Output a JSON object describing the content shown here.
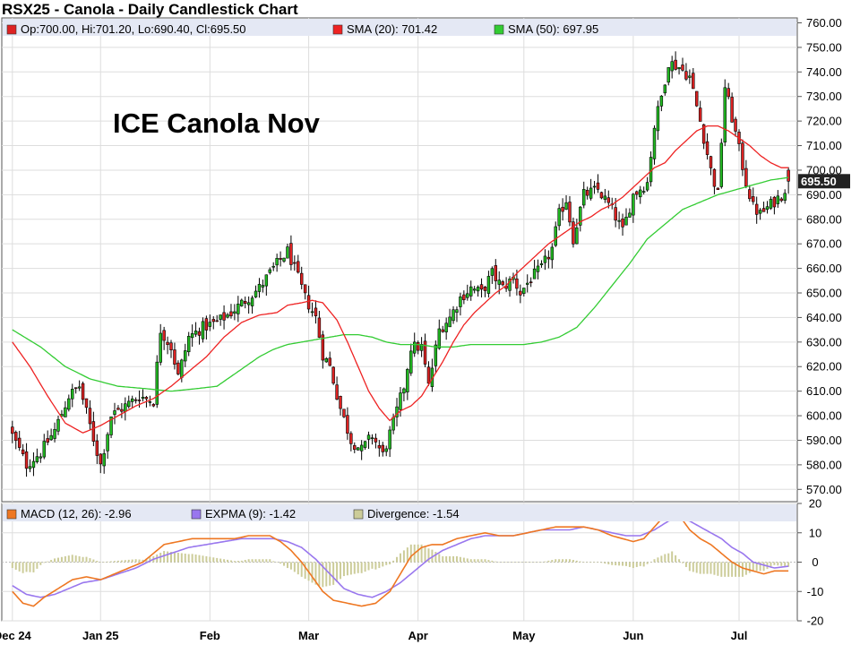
{
  "chart_data": {
    "type": "candlestick",
    "title": "RSX25 - Canola - Daily Candlestick Chart",
    "annotation": "ICE Canola Nov",
    "ohlc_legend": {
      "open": "700.00",
      "high": "701.20",
      "low": "690.40",
      "close": "695.50",
      "text": "Op:700.00, Hi:701.20, Lo:690.40, Cl:695.50"
    },
    "sma20_legend": "SMA (20): 701.42",
    "sma50_legend": "SMA (50): 697.95",
    "last_price_label": "695.50",
    "price_axis": {
      "min": 565,
      "max": 762,
      "ticks": [
        "760.00",
        "750.00",
        "740.00",
        "730.00",
        "720.00",
        "710.00",
        "700.00",
        "690.00",
        "680.00",
        "670.00",
        "660.00",
        "650.00",
        "640.00",
        "630.00",
        "620.00",
        "610.00",
        "600.00",
        "590.00",
        "580.00",
        "570.00"
      ]
    },
    "macd_axis": {
      "min": -20,
      "max": 20,
      "ticks": [
        "20",
        "10",
        "0",
        "-10",
        "-20"
      ]
    },
    "macd_legend": "MACD (12, 26): -2.96",
    "expma_legend": "EXPMA (9): -1.42",
    "divergence_legend": "Divergence: -1.54",
    "x_labels": [
      "Dec 24",
      "Jan 25",
      "Feb",
      "Mar",
      "Apr",
      "May",
      "Jun",
      "Jul"
    ],
    "x_label_days": [
      0,
      25,
      56,
      84,
      115,
      145,
      176,
      206
    ],
    "colors": {
      "up": "#22bb22",
      "down": "#dd2222",
      "sma20": "#ee2222",
      "sma50": "#33cc33",
      "macd": "#ee7722",
      "expma": "#9977ee",
      "divergence": "#cccc99",
      "legend_bg": "#e4e8f4",
      "grid": "#dddddd"
    },
    "close_anchors": [
      [
        0,
        592
      ],
      [
        4,
        580
      ],
      [
        8,
        585
      ],
      [
        12,
        594
      ],
      [
        16,
        608
      ],
      [
        19,
        612
      ],
      [
        22,
        596
      ],
      [
        25,
        580
      ],
      [
        28,
        600
      ],
      [
        32,
        604
      ],
      [
        36,
        608
      ],
      [
        40,
        606
      ],
      [
        42,
        635
      ],
      [
        45,
        628
      ],
      [
        47,
        616
      ],
      [
        50,
        632
      ],
      [
        54,
        636
      ],
      [
        58,
        638
      ],
      [
        62,
        642
      ],
      [
        66,
        647
      ],
      [
        70,
        652
      ],
      [
        74,
        660
      ],
      [
        78,
        667
      ],
      [
        80,
        660
      ],
      [
        83,
        648
      ],
      [
        86,
        640
      ],
      [
        88,
        625
      ],
      [
        90,
        620
      ],
      [
        93,
        603
      ],
      [
        96,
        590
      ],
      [
        99,
        586
      ],
      [
        102,
        592
      ],
      [
        105,
        584
      ],
      [
        108,
        597
      ],
      [
        111,
        612
      ],
      [
        113,
        628
      ],
      [
        116,
        628
      ],
      [
        118,
        612
      ],
      [
        121,
        635
      ],
      [
        124,
        640
      ],
      [
        127,
        648
      ],
      [
        130,
        652
      ],
      [
        133,
        650
      ],
      [
        136,
        658
      ],
      [
        139,
        652
      ],
      [
        142,
        656
      ],
      [
        144,
        650
      ],
      [
        147,
        656
      ],
      [
        150,
        660
      ],
      [
        153,
        668
      ],
      [
        155,
        682
      ],
      [
        157,
        688
      ],
      [
        159,
        672
      ],
      [
        162,
        690
      ],
      [
        166,
        692
      ],
      [
        170,
        684
      ],
      [
        173,
        675
      ],
      [
        176,
        690
      ],
      [
        180,
        695
      ],
      [
        182,
        718
      ],
      [
        184,
        730
      ],
      [
        186,
        744
      ],
      [
        189,
        742
      ],
      [
        192,
        738
      ],
      [
        195,
        720
      ],
      [
        198,
        700
      ],
      [
        200,
        690
      ],
      [
        202,
        734
      ],
      [
        205,
        715
      ],
      [
        208,
        695
      ],
      [
        210,
        685
      ],
      [
        212,
        682
      ],
      [
        215,
        686
      ],
      [
        218,
        690
      ],
      [
        220,
        695
      ]
    ],
    "sma20_anchors": [
      [
        0,
        630
      ],
      [
        5,
        620
      ],
      [
        10,
        608
      ],
      [
        15,
        597
      ],
      [
        20,
        593
      ],
      [
        25,
        596
      ],
      [
        30,
        600
      ],
      [
        35,
        604
      ],
      [
        40,
        607
      ],
      [
        45,
        612
      ],
      [
        50,
        618
      ],
      [
        55,
        624
      ],
      [
        60,
        632
      ],
      [
        65,
        638
      ],
      [
        70,
        641
      ],
      [
        75,
        642
      ],
      [
        78,
        645
      ],
      [
        82,
        646
      ],
      [
        85,
        647
      ],
      [
        88,
        646
      ],
      [
        92,
        639
      ],
      [
        95,
        630
      ],
      [
        98,
        620
      ],
      [
        101,
        610
      ],
      [
        104,
        603
      ],
      [
        107,
        598
      ],
      [
        110,
        602
      ],
      [
        113,
        604
      ],
      [
        116,
        608
      ],
      [
        119,
        615
      ],
      [
        122,
        622
      ],
      [
        125,
        630
      ],
      [
        128,
        637
      ],
      [
        131,
        642
      ],
      [
        134,
        646
      ],
      [
        137,
        650
      ],
      [
        140,
        653
      ],
      [
        143,
        658
      ],
      [
        146,
        662
      ],
      [
        149,
        666
      ],
      [
        152,
        670
      ],
      [
        155,
        673
      ],
      [
        158,
        676
      ],
      [
        161,
        679
      ],
      [
        164,
        681
      ],
      [
        167,
        684
      ],
      [
        170,
        686
      ],
      [
        173,
        689
      ],
      [
        176,
        693
      ],
      [
        179,
        697
      ],
      [
        182,
        701
      ],
      [
        185,
        703
      ],
      [
        188,
        708
      ],
      [
        191,
        712
      ],
      [
        194,
        716
      ],
      [
        197,
        718
      ],
      [
        200,
        718
      ],
      [
        203,
        716
      ],
      [
        206,
        713
      ],
      [
        209,
        710
      ],
      [
        212,
        706
      ],
      [
        215,
        703
      ],
      [
        218,
        701
      ],
      [
        220,
        701
      ]
    ],
    "sma50_anchors": [
      [
        0,
        635
      ],
      [
        8,
        628
      ],
      [
        15,
        620
      ],
      [
        22,
        615
      ],
      [
        30,
        612
      ],
      [
        38,
        611
      ],
      [
        45,
        610
      ],
      [
        52,
        611
      ],
      [
        58,
        612
      ],
      [
        62,
        616
      ],
      [
        66,
        620
      ],
      [
        70,
        624
      ],
      [
        74,
        627
      ],
      [
        78,
        629
      ],
      [
        82,
        630
      ],
      [
        86,
        631
      ],
      [
        90,
        632
      ],
      [
        94,
        633
      ],
      [
        98,
        633
      ],
      [
        102,
        632
      ],
      [
        106,
        630
      ],
      [
        110,
        629
      ],
      [
        115,
        629
      ],
      [
        120,
        628
      ],
      [
        125,
        628
      ],
      [
        130,
        629
      ],
      [
        135,
        629
      ],
      [
        140,
        629
      ],
      [
        145,
        629
      ],
      [
        150,
        630
      ],
      [
        155,
        632
      ],
      [
        160,
        636
      ],
      [
        165,
        644
      ],
      [
        170,
        653
      ],
      [
        175,
        662
      ],
      [
        180,
        672
      ],
      [
        185,
        678
      ],
      [
        190,
        684
      ],
      [
        195,
        687
      ],
      [
        200,
        690
      ],
      [
        205,
        692
      ],
      [
        210,
        694
      ],
      [
        215,
        696
      ],
      [
        220,
        697
      ]
    ],
    "macd_anchors": [
      [
        0,
        -10
      ],
      [
        3,
        -14
      ],
      [
        6,
        -15
      ],
      [
        9,
        -12
      ],
      [
        13,
        -9
      ],
      [
        17,
        -6
      ],
      [
        21,
        -5
      ],
      [
        25,
        -6
      ],
      [
        29,
        -4
      ],
      [
        33,
        -2
      ],
      [
        37,
        0
      ],
      [
        40,
        3
      ],
      [
        43,
        6
      ],
      [
        47,
        7
      ],
      [
        51,
        8
      ],
      [
        55,
        8
      ],
      [
        59,
        8
      ],
      [
        63,
        8
      ],
      [
        67,
        9
      ],
      [
        70,
        9
      ],
      [
        73,
        9
      ],
      [
        76,
        7
      ],
      [
        79,
        4
      ],
      [
        82,
        0
      ],
      [
        85,
        -5
      ],
      [
        88,
        -10
      ],
      [
        91,
        -13
      ],
      [
        95,
        -14
      ],
      [
        99,
        -15
      ],
      [
        103,
        -14
      ],
      [
        107,
        -10
      ],
      [
        110,
        -4
      ],
      [
        113,
        2
      ],
      [
        116,
        5
      ],
      [
        119,
        6
      ],
      [
        122,
        6
      ],
      [
        126,
        8
      ],
      [
        130,
        9
      ],
      [
        134,
        10
      ],
      [
        138,
        9
      ],
      [
        142,
        9
      ],
      [
        146,
        10
      ],
      [
        150,
        11
      ],
      [
        154,
        12
      ],
      [
        158,
        12
      ],
      [
        162,
        12
      ],
      [
        166,
        11
      ],
      [
        170,
        9
      ],
      [
        173,
        8
      ],
      [
        176,
        7
      ],
      [
        179,
        8
      ],
      [
        182,
        12
      ],
      [
        185,
        16
      ],
      [
        187,
        18
      ],
      [
        189,
        16
      ],
      [
        192,
        11
      ],
      [
        195,
        8
      ],
      [
        198,
        6
      ],
      [
        201,
        3
      ],
      [
        204,
        0
      ],
      [
        207,
        -2
      ],
      [
        210,
        -3
      ],
      [
        213,
        -4
      ],
      [
        216,
        -3
      ],
      [
        220,
        -3
      ]
    ],
    "expma_anchors": [
      [
        0,
        -8
      ],
      [
        4,
        -11
      ],
      [
        8,
        -12
      ],
      [
        12,
        -11
      ],
      [
        16,
        -9
      ],
      [
        20,
        -7
      ],
      [
        25,
        -6
      ],
      [
        30,
        -4
      ],
      [
        35,
        -2
      ],
      [
        40,
        1
      ],
      [
        45,
        3
      ],
      [
        50,
        5
      ],
      [
        55,
        6
      ],
      [
        60,
        7
      ],
      [
        65,
        8
      ],
      [
        70,
        8
      ],
      [
        74,
        8
      ],
      [
        78,
        7
      ],
      [
        82,
        5
      ],
      [
        86,
        1
      ],
      [
        90,
        -4
      ],
      [
        94,
        -9
      ],
      [
        98,
        -11
      ],
      [
        102,
        -12
      ],
      [
        106,
        -10
      ],
      [
        110,
        -7
      ],
      [
        114,
        -3
      ],
      [
        118,
        1
      ],
      [
        122,
        4
      ],
      [
        126,
        6
      ],
      [
        130,
        8
      ],
      [
        134,
        9
      ],
      [
        138,
        9
      ],
      [
        142,
        9
      ],
      [
        146,
        10
      ],
      [
        150,
        11
      ],
      [
        154,
        11
      ],
      [
        158,
        11
      ],
      [
        162,
        12
      ],
      [
        166,
        11
      ],
      [
        170,
        10
      ],
      [
        174,
        9
      ],
      [
        178,
        9
      ],
      [
        182,
        11
      ],
      [
        186,
        14
      ],
      [
        189,
        15
      ],
      [
        192,
        14
      ],
      [
        195,
        12
      ],
      [
        198,
        10
      ],
      [
        201,
        8
      ],
      [
        204,
        5
      ],
      [
        207,
        3
      ],
      [
        210,
        0
      ],
      [
        213,
        -1
      ],
      [
        216,
        -2
      ],
      [
        220,
        -1.4
      ]
    ]
  }
}
